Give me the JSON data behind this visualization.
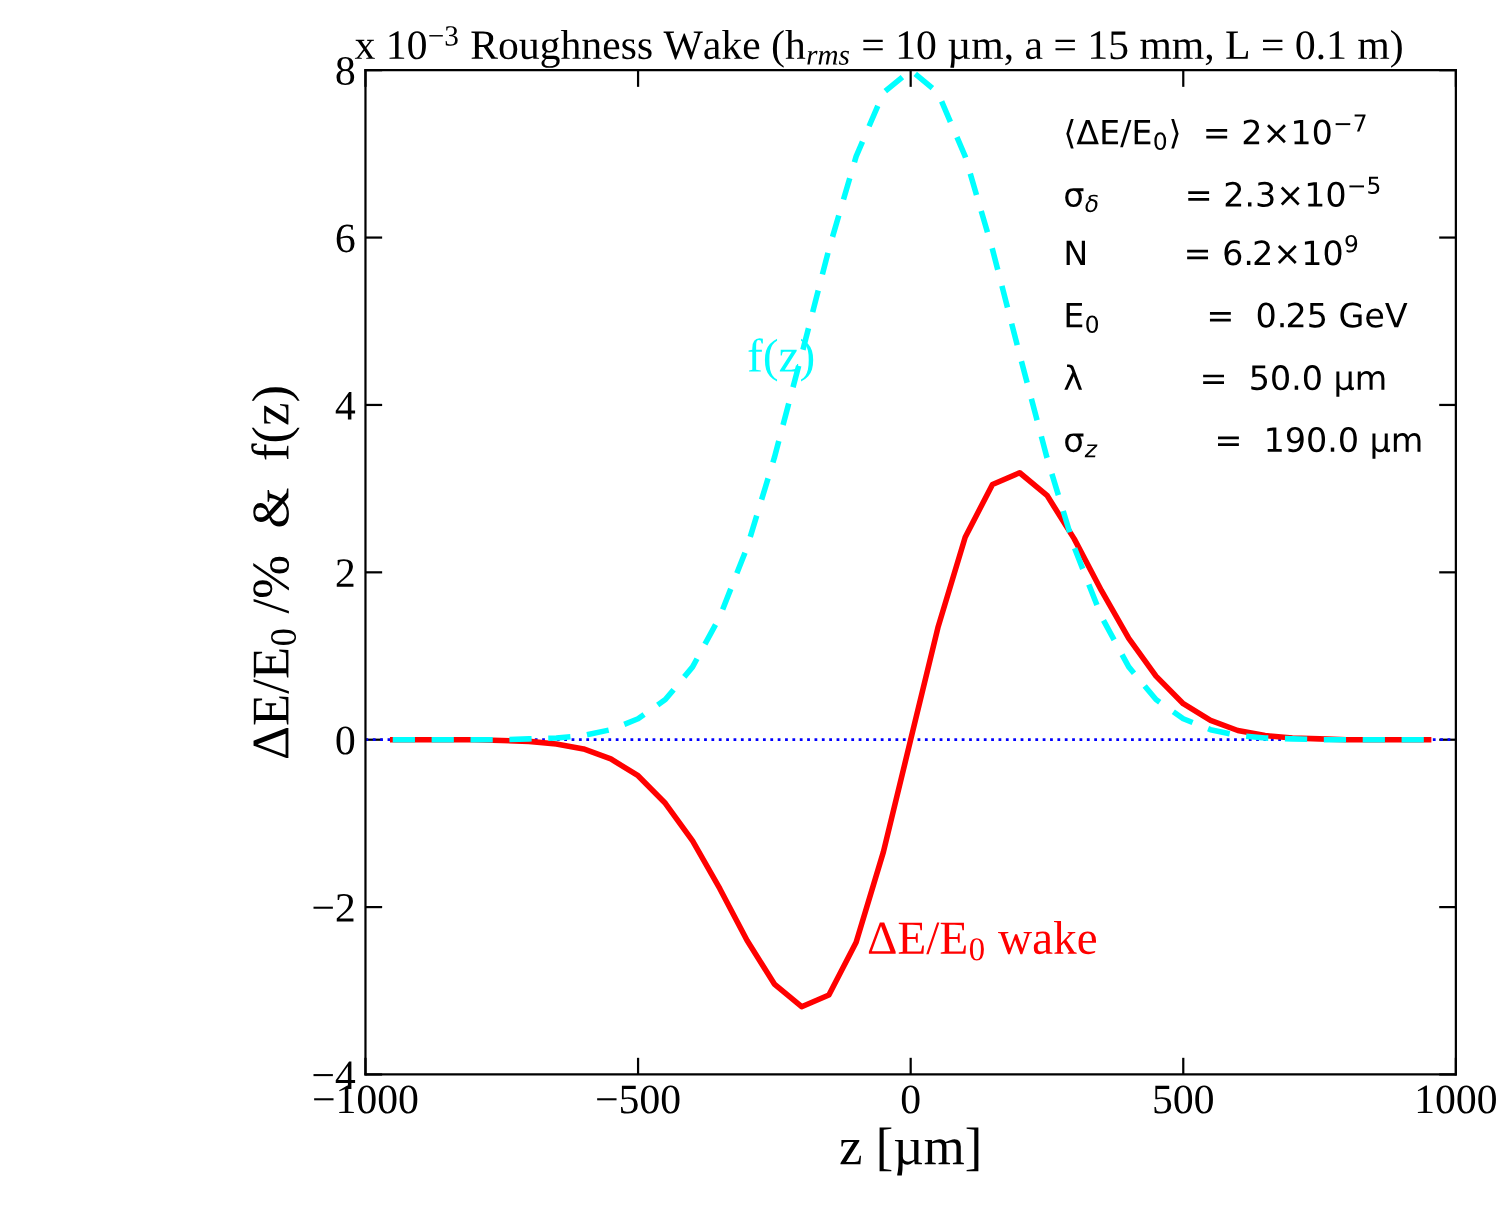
{
  "chart_data": {
    "type": "line",
    "title": "x 10$^{−3}$ Roughness Wake (h$_{rms}$ = 10 µm, a = 15 mm, L = 0.1 m)",
    "xlabel": "z [µm]",
    "ylabel": "ΔE/E$_{0}$ /%  &  f(z)",
    "x": [
      -950,
      -900,
      -850,
      -800,
      -750,
      -700,
      -650,
      -600,
      -550,
      -500,
      -450,
      -400,
      -350,
      -300,
      -250,
      -200,
      -150,
      -100,
      -50,
      0,
      50,
      100,
      150,
      200,
      250,
      300,
      350,
      400,
      450,
      500,
      550,
      600,
      650,
      700,
      750,
      800,
      850,
      900,
      950
    ],
    "series": [
      {
        "name": "f(z)",
        "color": "#00ffff",
        "line_style": "dashed",
        "values": [
          0,
          0,
          0,
          0,
          0,
          0.01,
          0.02,
          0.05,
          0.12,
          0.25,
          0.48,
          0.87,
          1.47,
          2.3,
          3.37,
          4.6,
          5.86,
          6.97,
          7.73,
          8,
          7.73,
          6.97,
          5.86,
          4.6,
          3.37,
          2.3,
          1.47,
          0.87,
          0.48,
          0.25,
          0.12,
          0.05,
          0.02,
          0.01,
          0,
          0,
          0,
          0,
          0
        ]
      },
      {
        "name": "ΔE/E$_{0}$ wake",
        "color": "#ff0000",
        "line_style": "solid",
        "values": [
          0,
          0,
          0,
          0,
          -0.01,
          -0.02,
          -0.05,
          -0.11,
          -0.23,
          -0.43,
          -0.76,
          -1.21,
          -1.78,
          -2.4,
          -2.92,
          -3.19,
          -3.05,
          -2.42,
          -1.34,
          0,
          1.34,
          2.42,
          3.05,
          3.19,
          2.92,
          2.4,
          1.78,
          1.21,
          0.76,
          0.43,
          0.23,
          0.11,
          0.05,
          0.02,
          0.01,
          0,
          0,
          0,
          0
        ]
      }
    ],
    "ref_lines": [
      {
        "axis": "y",
        "value": 0,
        "color": "#0000ff",
        "line_style": "dotted"
      }
    ],
    "annotations": [
      "⟨ΔE/E$_{0}$⟩  = 2×10$^{−7}$",
      "σ$_{δ}$        = 2.3×10$^{−5}$",
      "N         = 6.2×10$^{9}$",
      "E$_{0}$          =  0.25 GeV",
      "λ           =  50.0 µm",
      "σ$_{z}$           =  190.0 µm"
    ],
    "xlim": [
      -1000,
      1000
    ],
    "ylim": [
      -4,
      8
    ],
    "xticks": [
      {
        "value": -1000,
        "label": "−1000"
      },
      {
        "value": -500,
        "label": "−500"
      },
      0,
      500,
      1000
    ],
    "yticks": [
      {
        "value": -4,
        "label": "−4"
      },
      {
        "value": -2,
        "label": "−2"
      },
      0,
      2,
      4,
      6,
      8
    ],
    "grid": false,
    "legend": false
  }
}
